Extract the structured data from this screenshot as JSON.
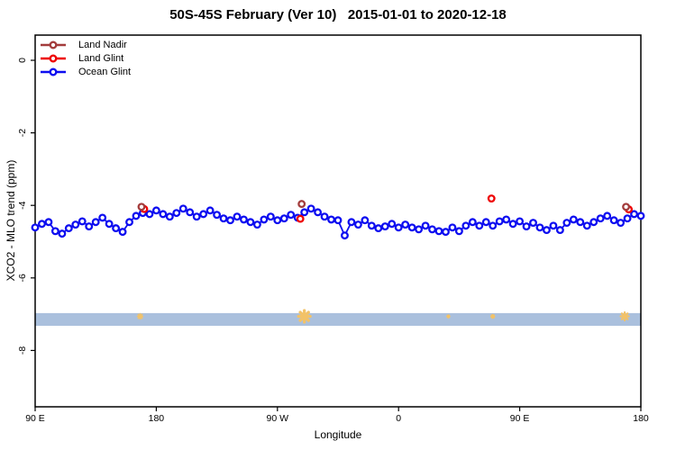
{
  "title": "50S-45S February (Ver 10)   2015-01-01 to 2020-12-18",
  "axes": {
    "x_label": "Longitude",
    "y_label": "XCO2 - MLO trend (ppm)"
  },
  "legend": [
    {
      "label": "Land Nadir",
      "color": "#a33c3c"
    },
    {
      "label": "Land Glint",
      "color": "#ee0000"
    },
    {
      "label": "Ocean Glint",
      "color": "#0d0df0"
    }
  ],
  "chart_data": {
    "type": "line",
    "title": "50S-45S February (Ver 10)   2015-01-01 to 2020-12-18",
    "xlabel": "Longitude",
    "ylabel": "XCO2 - MLO trend (ppm)",
    "xlim": [
      90,
      540
    ],
    "ylim": [
      -9.6,
      0.7
    ],
    "grid": false,
    "legend_position": "top-left",
    "x_ticks": [
      {
        "x": 90,
        "label": "90 E"
      },
      {
        "x": 180,
        "label": "180"
      },
      {
        "x": 270,
        "label": "90 W"
      },
      {
        "x": 360,
        "label": "0"
      },
      {
        "x": 450,
        "label": "90 E"
      },
      {
        "x": 540,
        "label": "180"
      }
    ],
    "y_ticks": [
      {
        "v": 0,
        "label": "0"
      },
      {
        "v": -2,
        "label": "-2"
      },
      {
        "v": -4,
        "label": "-4"
      },
      {
        "v": -6,
        "label": "-6"
      },
      {
        "v": -8,
        "label": "-8"
      }
    ],
    "series": [
      {
        "name": "Ocean Glint",
        "color": "#0d0df0",
        "marker": "open-circle",
        "x_start": 90,
        "x_step": 5,
        "values": [
          -4.61,
          -4.51,
          -4.46,
          -4.71,
          -4.78,
          -4.63,
          -4.53,
          -4.44,
          -4.58,
          -4.46,
          -4.34,
          -4.51,
          -4.63,
          -4.73,
          -4.46,
          -4.29,
          -4.21,
          -4.24,
          -4.14,
          -4.24,
          -4.31,
          -4.21,
          -4.09,
          -4.19,
          -4.31,
          -4.24,
          -4.14,
          -4.26,
          -4.36,
          -4.41,
          -4.31,
          -4.39,
          -4.46,
          -4.53,
          -4.39,
          -4.31,
          -4.41,
          -4.36,
          -4.26,
          -4.34,
          -4.19,
          -4.09,
          -4.19,
          -4.31,
          -4.39,
          -4.41,
          -4.83,
          -4.46,
          -4.53,
          -4.41,
          -4.56,
          -4.63,
          -4.58,
          -4.51,
          -4.61,
          -4.53,
          -4.61,
          -4.66,
          -4.56,
          -4.66,
          -4.71,
          -4.73,
          -4.61,
          -4.71,
          -4.56,
          -4.46,
          -4.56,
          -4.46,
          -4.56,
          -4.44,
          -4.39,
          -4.51,
          -4.44,
          -4.58,
          -4.48,
          -4.61,
          -4.68,
          -4.56,
          -4.68,
          -4.48,
          -4.39,
          -4.46,
          -4.56,
          -4.46,
          -4.36,
          -4.29,
          -4.41,
          -4.48,
          -4.36,
          -4.24,
          -4.29
        ]
      },
      {
        "name": "Land Glint",
        "color": "#ee0000",
        "marker": "open-circle",
        "points": [
          [
            171,
            -4.1
          ],
          [
            287,
            -4.37
          ],
          [
            429,
            -3.81
          ],
          [
            531,
            -4.11
          ]
        ]
      },
      {
        "name": "Land Nadir",
        "color": "#a33c3c",
        "marker": "open-circle",
        "points": [
          [
            169,
            -4.04
          ],
          [
            288,
            -3.96
          ],
          [
            529,
            -4.04
          ]
        ]
      }
    ],
    "band": {
      "v_top": -6.97,
      "v_bottom": -7.32,
      "color": "#aac0dd"
    },
    "band_marks": {
      "color": "#f2c268",
      "v": -7.06,
      "items": [
        {
          "x": 168,
          "size": 6
        },
        {
          "x": 290,
          "size": 13
        },
        {
          "x": 397,
          "size": 3
        },
        {
          "x": 430,
          "size": 4
        },
        {
          "x": 528,
          "size": 9
        }
      ]
    }
  }
}
